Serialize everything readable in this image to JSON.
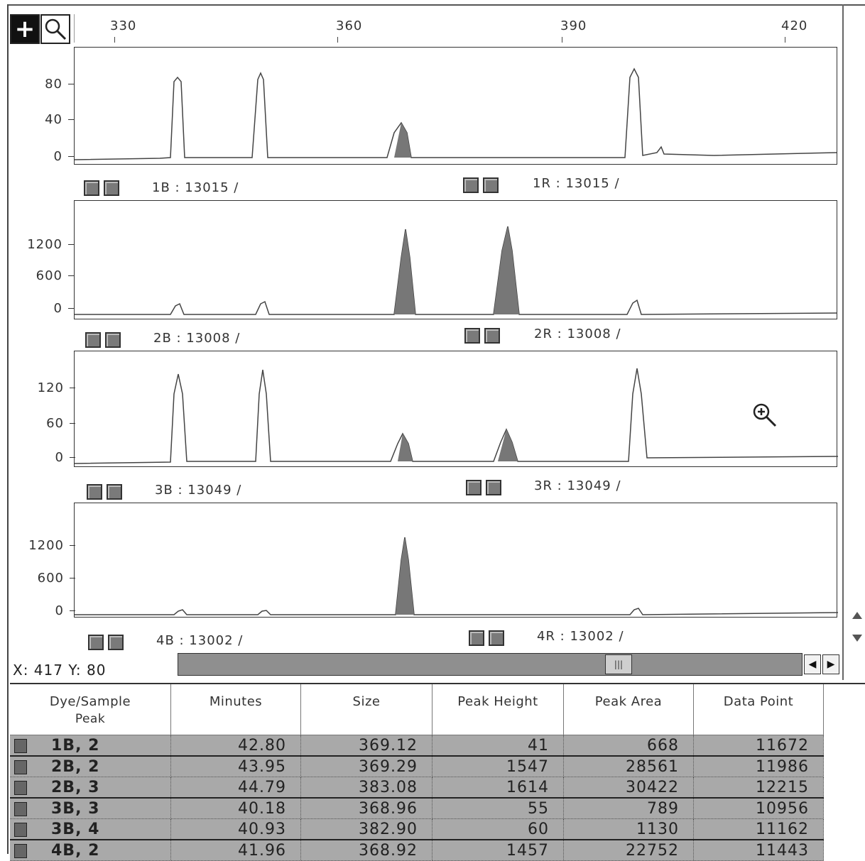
{
  "toolbar": {
    "zoom_tool": "+",
    "magnifier_tool": "magnifier-icon"
  },
  "ruler": {
    "ticks": [
      "330",
      "360",
      "390",
      "420"
    ]
  },
  "panels": [
    {
      "yticks": [
        "80",
        "40",
        "0"
      ],
      "labels": [
        "1B : 13015 /",
        "1R : 13015 /"
      ]
    },
    {
      "yticks": [
        "1200",
        "600",
        "0"
      ],
      "labels": [
        "2B : 13008 /",
        "2R : 13008 /"
      ]
    },
    {
      "yticks": [
        "120",
        "60",
        "0"
      ],
      "labels": [
        "3B : 13049 /",
        "3R : 13049 /"
      ]
    },
    {
      "yticks": [
        "1200",
        "600",
        "0"
      ],
      "labels": [
        "4B : 13002 /",
        "4R : 13002 /"
      ]
    }
  ],
  "status": {
    "coords": "X: 417   Y: 80"
  },
  "table": {
    "headers": [
      "Dye/Sample",
      "Minutes",
      "Size",
      "Peak Height",
      "Peak Area",
      "Data Point"
    ],
    "header_sub": "Peak",
    "rows": [
      [
        "1B, 2",
        "42.80",
        "369.12",
        "41",
        "668",
        "11672"
      ],
      [
        "2B, 2",
        "43.95",
        "369.29",
        "1547",
        "28561",
        "11986"
      ],
      [
        "2B, 3",
        "44.79",
        "383.08",
        "1614",
        "30422",
        "12215"
      ],
      [
        "3B, 3",
        "40.18",
        "368.96",
        "55",
        "789",
        "10956"
      ],
      [
        "3B, 4",
        "40.93",
        "382.90",
        "60",
        "1130",
        "11162"
      ],
      [
        "4B, 2",
        "41.96",
        "368.92",
        "1457",
        "22752",
        "11443"
      ]
    ]
  },
  "colors": {
    "peak_fill": "#777777",
    "trace": "#444444",
    "row_bg": "#a9a9a9"
  }
}
